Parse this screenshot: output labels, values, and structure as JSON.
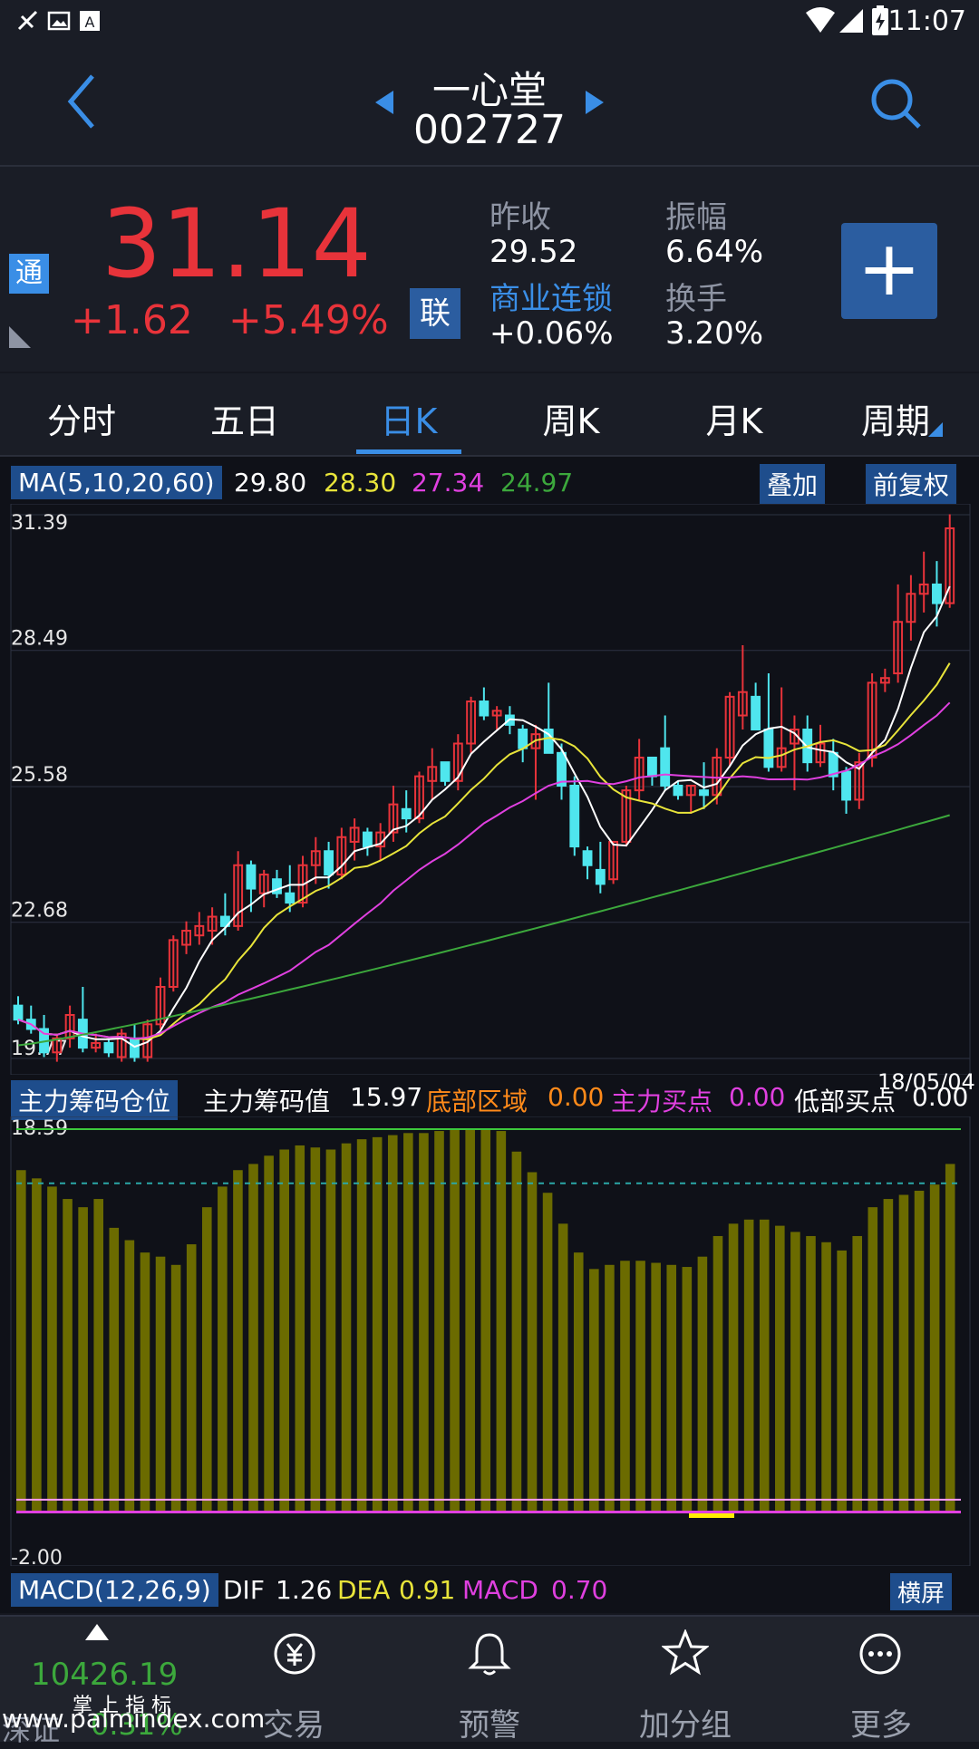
{
  "status_bar": {
    "time": "11:07"
  },
  "nav": {
    "title": "一心堂",
    "code": "002727"
  },
  "quote": {
    "tong_badge": "通",
    "price": "31.14",
    "change": "+1.62",
    "change_pct": "+5.49%",
    "lian_badge": "联",
    "prev_close_label": "昨收",
    "prev_close": "29.52",
    "amplitude_label": "振幅",
    "amplitude": "6.64%",
    "sector_label": "商业连锁",
    "sector_change": "+0.06%",
    "turnover_label": "换手",
    "turnover": "3.20%",
    "add_symbol": "+"
  },
  "tabs": [
    {
      "label": "分时"
    },
    {
      "label": "五日"
    },
    {
      "label": "日K"
    },
    {
      "label": "周K"
    },
    {
      "label": "月K"
    },
    {
      "label": "周期"
    }
  ],
  "ma_legend": {
    "label": "MA(5,10,20,60)",
    "ma5": "29.80",
    "ma10": "28.30",
    "ma20": "27.34",
    "ma60": "24.97",
    "overlay_button": "叠加",
    "adjust_button": "前复权"
  },
  "indicator_legend": {
    "label": "主力筹码仓位",
    "item1_label": "主力筹码值",
    "item1_value": "15.97",
    "item2_label": "底部区域",
    "item2_value": "0.00",
    "item3_label": "主力买点",
    "item3_value": "0.00",
    "item4_label": "低部买点",
    "item4_value": "0.00",
    "date": "18/05/04"
  },
  "macd_legend": {
    "label": "MACD(12,26,9)",
    "dif_label": "DIF",
    "dif": "1.26",
    "dea_label": "DEA",
    "dea": "0.91",
    "macd_label": "MACD",
    "macd": "0.70",
    "landscape_button": "横屏"
  },
  "bottom_bar": {
    "index_value": "10426.19",
    "index_name": "深证",
    "index_change": "0.31%",
    "brand": "掌 上 指 标",
    "watermark": "www.palmindex.com",
    "items": [
      {
        "label": "交易"
      },
      {
        "label": "预警"
      },
      {
        "label": "加分组"
      },
      {
        "label": "更多"
      }
    ]
  },
  "colors": {
    "up": "#e8333a",
    "down": "#4fe6ee",
    "ma5": "#ffffff",
    "ma10": "#e8e43a",
    "ma20": "#e040e0",
    "ma60": "#3ca83c",
    "accent": "#3a8ee6",
    "bar_fill": "#6b6b00"
  },
  "chart_data": [
    {
      "type": "candlestick",
      "title": "",
      "y_ticks": [
        "31.39",
        "28.49",
        "25.58",
        "22.68",
        "19.77"
      ],
      "ylim": [
        19.77,
        31.39
      ],
      "candles": [
        [
          20.9,
          21.1,
          20.5,
          20.6
        ],
        [
          20.6,
          20.9,
          20.3,
          20.4
        ],
        [
          20.4,
          20.7,
          19.8,
          19.9
        ],
        [
          19.9,
          20.3,
          19.7,
          20.2
        ],
        [
          20.2,
          20.9,
          20.0,
          20.7
        ],
        [
          20.6,
          21.3,
          19.9,
          20.0
        ],
        [
          20.0,
          20.3,
          19.9,
          20.1
        ],
        [
          20.1,
          20.2,
          19.8,
          19.9
        ],
        [
          19.8,
          20.4,
          19.7,
          20.3
        ],
        [
          20.2,
          20.5,
          19.7,
          19.8
        ],
        [
          19.8,
          20.6,
          19.7,
          20.5
        ],
        [
          20.5,
          21.5,
          20.4,
          21.3
        ],
        [
          21.3,
          22.4,
          21.2,
          22.3
        ],
        [
          22.2,
          22.7,
          22.0,
          22.5
        ],
        [
          22.4,
          22.9,
          22.2,
          22.6
        ],
        [
          22.5,
          23.0,
          22.2,
          22.8
        ],
        [
          22.8,
          23.3,
          22.4,
          22.6
        ],
        [
          22.6,
          24.2,
          22.5,
          23.9
        ],
        [
          23.9,
          24.0,
          22.9,
          23.4
        ],
        [
          23.3,
          23.8,
          23.0,
          23.7
        ],
        [
          23.6,
          23.8,
          23.2,
          23.3
        ],
        [
          23.3,
          23.9,
          22.9,
          23.1
        ],
        [
          23.1,
          24.1,
          23.0,
          23.9
        ],
        [
          23.9,
          24.5,
          23.5,
          24.2
        ],
        [
          24.2,
          24.4,
          23.4,
          23.7
        ],
        [
          23.7,
          24.7,
          23.6,
          24.5
        ],
        [
          24.4,
          24.9,
          24.0,
          24.7
        ],
        [
          24.6,
          24.7,
          24.1,
          24.3
        ],
        [
          24.3,
          24.8,
          24.0,
          24.6
        ],
        [
          24.6,
          25.6,
          24.4,
          25.2
        ],
        [
          25.1,
          25.5,
          24.6,
          24.9
        ],
        [
          24.9,
          25.9,
          24.8,
          25.8
        ],
        [
          25.7,
          26.4,
          25.3,
          26.0
        ],
        [
          26.1,
          26.1,
          25.6,
          25.7
        ],
        [
          25.7,
          26.7,
          25.5,
          26.5
        ],
        [
          26.5,
          27.5,
          26.3,
          27.4
        ],
        [
          27.4,
          27.7,
          27.0,
          27.1
        ],
        [
          27.1,
          27.3,
          26.8,
          27.2
        ],
        [
          27.1,
          27.3,
          26.7,
          26.9
        ],
        [
          26.8,
          26.9,
          26.1,
          26.4
        ],
        [
          26.4,
          26.9,
          25.3,
          26.7
        ],
        [
          26.8,
          27.8,
          26.3,
          26.3
        ],
        [
          26.3,
          26.5,
          25.3,
          25.6
        ],
        [
          25.6,
          25.8,
          24.1,
          24.3
        ],
        [
          24.2,
          24.3,
          23.6,
          23.9
        ],
        [
          23.8,
          24.4,
          23.3,
          23.5
        ],
        [
          23.6,
          24.4,
          23.5,
          24.4
        ],
        [
          24.4,
          25.6,
          24.3,
          25.5
        ],
        [
          25.5,
          26.6,
          25.3,
          26.2
        ],
        [
          26.2,
          26.2,
          25.6,
          25.8
        ],
        [
          26.4,
          27.1,
          25.5,
          25.6
        ],
        [
          25.6,
          25.7,
          25.3,
          25.4
        ],
        [
          25.4,
          25.6,
          25.0,
          25.6
        ],
        [
          25.5,
          26.1,
          25.1,
          25.4
        ],
        [
          25.4,
          26.4,
          25.2,
          26.2
        ],
        [
          26.2,
          27.6,
          26.0,
          27.5
        ],
        [
          27.1,
          28.6,
          26.8,
          27.6
        ],
        [
          27.5,
          27.8,
          26.8,
          26.8
        ],
        [
          26.8,
          28.0,
          25.9,
          26.0
        ],
        [
          26.0,
          27.7,
          25.9,
          26.4
        ],
        [
          26.5,
          27.1,
          25.5,
          26.8
        ],
        [
          26.8,
          27.1,
          25.9,
          26.1
        ],
        [
          26.1,
          26.9,
          26.0,
          26.5
        ],
        [
          26.3,
          26.6,
          25.5,
          25.8
        ],
        [
          25.9,
          26.0,
          25.0,
          25.3
        ],
        [
          25.3,
          26.3,
          25.1,
          26.1
        ],
        [
          26.2,
          28.0,
          26.0,
          27.8
        ],
        [
          27.8,
          28.1,
          27.6,
          27.9
        ],
        [
          28.0,
          29.9,
          27.8,
          29.1
        ],
        [
          29.1,
          30.1,
          28.7,
          29.7
        ],
        [
          29.7,
          30.6,
          29.3,
          29.9
        ],
        [
          29.9,
          30.4,
          29.0,
          29.5
        ],
        [
          29.5,
          31.4,
          29.4,
          31.1
        ]
      ]
    },
    {
      "type": "bar",
      "title": "",
      "y_ticks": [
        "18.59",
        "-2.00"
      ],
      "ylim": [
        -2.0,
        18.59
      ],
      "values": [
        16.6,
        16.2,
        15.8,
        15.2,
        14.8,
        15.2,
        13.8,
        13.2,
        12.6,
        12.4,
        12.0,
        13.0,
        14.8,
        15.8,
        16.6,
        16.9,
        17.3,
        17.6,
        17.8,
        17.7,
        17.6,
        17.9,
        18.1,
        18.2,
        18.3,
        18.4,
        18.4,
        18.5,
        18.6,
        18.6,
        18.6,
        18.5,
        17.5,
        16.5,
        15.5,
        14.0,
        12.6,
        11.8,
        12.0,
        12.2,
        12.2,
        12.1,
        12.0,
        11.9,
        12.4,
        13.4,
        14.0,
        14.2,
        14.2,
        13.9,
        13.6,
        13.4,
        13.1,
        12.7,
        13.4,
        14.8,
        15.2,
        15.4,
        15.6,
        15.9,
        16.9
      ],
      "reference_lines": [
        18.59,
        15.96,
        0.6,
        0.0
      ]
    }
  ]
}
